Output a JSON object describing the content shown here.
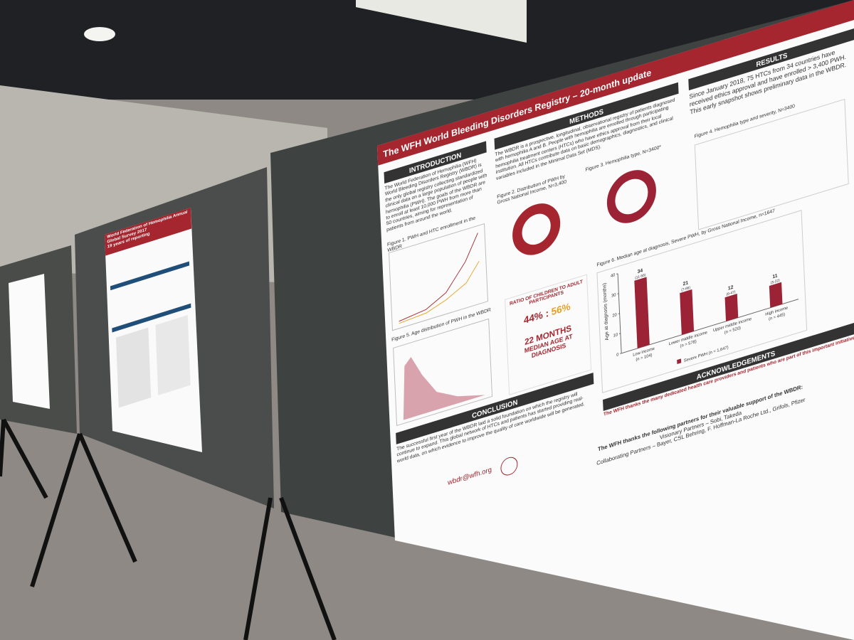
{
  "main_poster": {
    "title": "The WFH World Bleeding Disorders Registry – 20-month update",
    "introduction": {
      "heading": "INTRODUCTION",
      "text": "The World Federation of Hemophilia (WFH) World Bleeding Disorders Registry (WBDR) is the only global registry collecting standardized clinical data on a large population of people with hemophilia (PWH). The goals of the WBDR are to enroll at least 10,000 PWH from more than 50 countries, aiming for representation of patients from around the world."
    },
    "methods": {
      "heading": "METHODS",
      "text": "The WBDR is a prospective, longitudinal, observational registry of patients diagnosed with hemophilia A and B. People with hemophilia are enrolled through participating hemophilia treatment centers (HTCs) who have ethics approval from their local institution. All HTCs contribute data on basic demographics, diagnostics, and clinical variables included in the Minimal Data Set (MDS)."
    },
    "results": {
      "heading": "RESULTS",
      "text": "Since January 2018, 75 HTCs from 34 countries have received ethics approval and have enrolled > 3,400 PWH. This early snapshot shows preliminary data in the WBDR."
    },
    "figures": [
      "Figure 1. PWH and HTC enrollment in the WBDR",
      "Figure 2. Distribution of PWH by Gross National Income, N=3,400",
      "Figure 3. Hemophilia type, N=3400*",
      "Figure 4. Hemophilia type and severity, N=3400",
      "Figure 5. Age distribution of PWH in the WBDR",
      "Figure 6. Median age at diagnosis, Severe PWH, by Gross National Income, n=1647"
    ],
    "ratio": {
      "label": "RATIO OF CHILDREN TO ADULT PARTICIPANTS",
      "children": "44%",
      "adults": "56%"
    },
    "median_age": {
      "value": "22 MONTHS",
      "label": "MEDIAN AGE AT DIAGNOSIS"
    },
    "figure6": {
      "y_label": "Age at diagnosis (months)",
      "ylim": [
        0,
        40
      ],
      "yticks": [
        0,
        10,
        20,
        30,
        40
      ],
      "categories": [
        "Low income",
        "Lower middle income",
        "Upper middle income",
        "High income"
      ],
      "counts": [
        "(n = 104)",
        "(n = 578)",
        "(n = 520)",
        "(n = 445)"
      ],
      "values": [
        34,
        21,
        12,
        11
      ],
      "ranges": [
        "(11-56)",
        "(7-86)",
        "(6-47)",
        "(5-22)"
      ],
      "legend": "Severe PWH (n = 1,647)",
      "color": "#9b2335"
    },
    "conclusion": {
      "heading": "CONCLUSION",
      "text": "The successful first year of the WBDR laid a solid foundation on which the registry will continue to expand. This global network of HTCs and patients has started providing real-world data, on which evidence to improve the quality of care worldwide will be generated."
    },
    "acknowledgements": {
      "heading": "ACKNOWLEDGEMENTS",
      "text": "The WFH thanks the many dedicated health care providers and patients who are part of this important initiative:"
    },
    "partners": "The WFH thanks the following partners for their valuable support of the WBDR:",
    "visionary": "Visionary Partners – Sobi, Takeda",
    "collaborating": "Collaborating Partners – Bayer, CSL Behring, F. Hoffman-La Roche Ltd., Grifols, Pfizer",
    "email": "wbdr@wfh.org"
  },
  "left_poster": {
    "title": "World Federation of Hemophilia Annual Global Survey 2017",
    "subtitle": "19 years of reporting"
  }
}
